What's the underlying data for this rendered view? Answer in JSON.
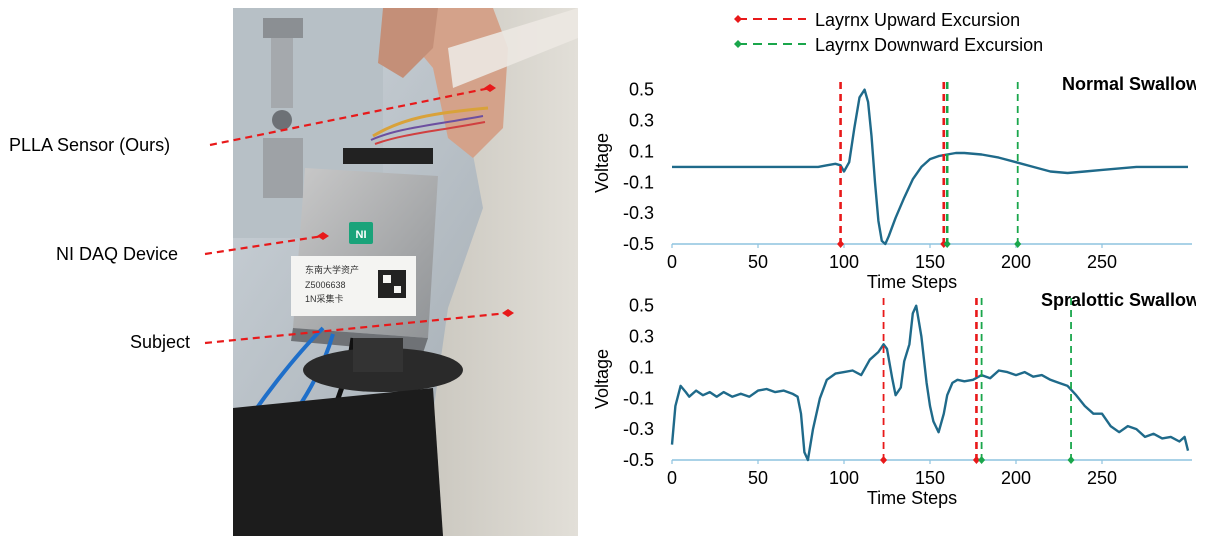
{
  "photo": {
    "callouts": [
      {
        "label": "PLLA Sensor (Ours)"
      },
      {
        "label": "NI DAQ Device"
      },
      {
        "label": "Subject"
      }
    ],
    "device": {
      "logo": "NI",
      "label_lines": [
        "东南大学资产",
        "Z5006638",
        "1N采集卡"
      ]
    }
  },
  "legend": {
    "items": [
      {
        "label": "Layrnx Upward Excursion",
        "color": "#e8191a"
      },
      {
        "label": "Layrnx Downward Excursion",
        "color": "#1aa64b"
      }
    ]
  },
  "chart_data": [
    {
      "type": "line",
      "title": "Normal Swallow",
      "xlabel": "Time Steps",
      "ylabel": "Voltage",
      "xlim": [
        0,
        300
      ],
      "ylim": [
        -0.5,
        0.55
      ],
      "xticks": [
        0,
        50,
        100,
        150,
        200,
        250
      ],
      "yticks": [
        0.5,
        0.3,
        0.1,
        -0.1,
        -0.3,
        -0.5
      ],
      "line_color": "#1f6a8a",
      "series": [
        {
          "x": [
            0,
            10,
            20,
            30,
            40,
            50,
            60,
            70,
            80,
            85,
            90,
            95,
            98,
            100,
            103,
            106,
            109,
            112,
            114,
            116,
            118,
            120,
            122,
            124,
            126,
            130,
            135,
            140,
            145,
            150,
            155,
            160,
            165,
            170,
            180,
            190,
            200,
            210,
            220,
            230,
            240,
            250,
            260,
            270,
            280,
            290,
            300
          ],
          "values": [
            0.0,
            0.0,
            0.0,
            0.0,
            0.0,
            0.0,
            0.0,
            0.0,
            0.0,
            0.0,
            0.01,
            0.02,
            0.01,
            -0.03,
            0.03,
            0.25,
            0.45,
            0.5,
            0.42,
            0.2,
            -0.1,
            -0.35,
            -0.48,
            -0.5,
            -0.45,
            -0.33,
            -0.2,
            -0.08,
            0.0,
            0.05,
            0.07,
            0.08,
            0.09,
            0.09,
            0.08,
            0.06,
            0.03,
            0.0,
            -0.03,
            -0.04,
            -0.03,
            -0.02,
            -0.01,
            0.0,
            0.0,
            0.0,
            0.0
          ]
        }
      ],
      "markers": {
        "up": [
          {
            "x": 98,
            "bold": true
          },
          {
            "x": 158,
            "bold": true
          }
        ],
        "down": [
          {
            "x": 160,
            "bold": true
          },
          {
            "x": 201,
            "bold": false
          }
        ]
      }
    },
    {
      "type": "line",
      "title": "Spralottic Swallow",
      "xlabel": "Time Steps",
      "ylabel": "Voltage",
      "xlim": [
        0,
        300
      ],
      "ylim": [
        -0.5,
        0.55
      ],
      "xticks": [
        0,
        50,
        100,
        150,
        200,
        250
      ],
      "yticks": [
        0.5,
        0.3,
        0.1,
        -0.1,
        -0.3,
        -0.5
      ],
      "line_color": "#1f6a8a",
      "series": [
        {
          "x": [
            0,
            2,
            5,
            8,
            10,
            14,
            18,
            22,
            26,
            30,
            35,
            40,
            45,
            50,
            55,
            60,
            65,
            70,
            73,
            75,
            77,
            79,
            82,
            86,
            90,
            95,
            100,
            105,
            110,
            115,
            120,
            123,
            125,
            128,
            130,
            133,
            135,
            138,
            140,
            142,
            145,
            148,
            150,
            152,
            155,
            158,
            160,
            163,
            166,
            170,
            175,
            180,
            185,
            190,
            195,
            200,
            205,
            210,
            215,
            220,
            225,
            230,
            235,
            240,
            245,
            250,
            255,
            260,
            265,
            270,
            275,
            280,
            285,
            290,
            295,
            298,
            300
          ],
          "values": [
            -0.4,
            -0.15,
            -0.02,
            -0.06,
            -0.09,
            -0.05,
            -0.08,
            -0.06,
            -0.09,
            -0.06,
            -0.09,
            -0.07,
            -0.09,
            -0.05,
            -0.04,
            -0.06,
            -0.05,
            -0.07,
            -0.09,
            -0.2,
            -0.45,
            -0.5,
            -0.3,
            -0.1,
            0.02,
            0.06,
            0.07,
            0.08,
            0.05,
            0.15,
            0.2,
            0.25,
            0.22,
            0.03,
            -0.08,
            -0.03,
            0.14,
            0.25,
            0.45,
            0.5,
            0.3,
            0.0,
            -0.15,
            -0.25,
            -0.32,
            -0.2,
            -0.08,
            0.0,
            0.02,
            0.01,
            0.02,
            0.05,
            0.03,
            0.08,
            0.07,
            0.05,
            0.07,
            0.04,
            0.05,
            0.02,
            0.0,
            -0.02,
            -0.08,
            -0.15,
            -0.2,
            -0.2,
            -0.28,
            -0.32,
            -0.28,
            -0.3,
            -0.35,
            -0.33,
            -0.36,
            -0.35,
            -0.38,
            -0.35,
            -0.44
          ]
        }
      ],
      "markers": {
        "up": [
          {
            "x": 123,
            "bold": false
          },
          {
            "x": 177,
            "bold": true
          }
        ],
        "down": [
          {
            "x": 180,
            "bold": false
          },
          {
            "x": 232,
            "bold": false
          }
        ]
      }
    }
  ]
}
